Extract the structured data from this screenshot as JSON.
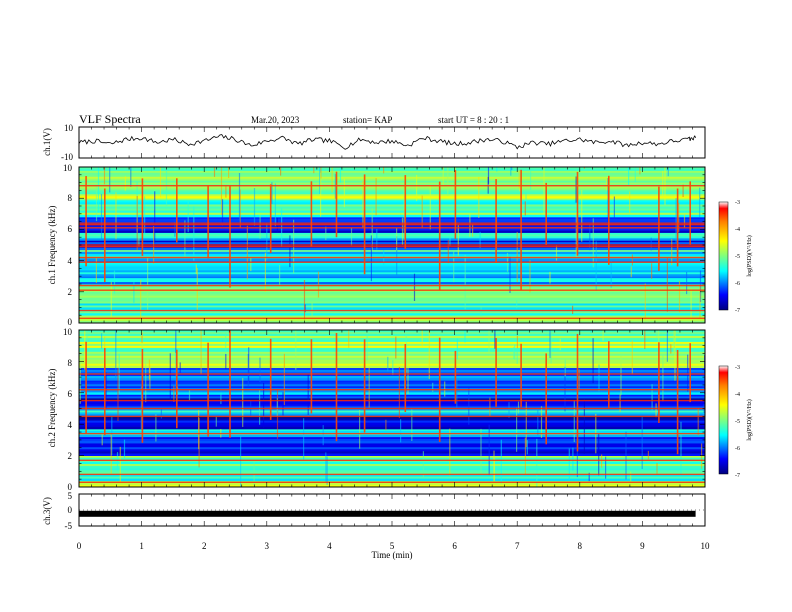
{
  "header": {
    "title": "VLF Spectra",
    "date": "Mar.20, 2023",
    "station": "station= KAP",
    "start_ut": "start  UT =   8  : 20 : 1"
  },
  "chart_data": [
    {
      "type": "line",
      "panel": "ch1-waveform",
      "ylabel": "ch.1(V)",
      "ylim": [
        -10,
        10
      ],
      "y_ticks": [
        "10",
        "-10"
      ],
      "xlim": [
        0,
        10
      ],
      "x": [
        0,
        0.25,
        0.5,
        0.75,
        1,
        1.25,
        1.5,
        1.75,
        2,
        2.25,
        2.5,
        2.75,
        3,
        3.25,
        3.5,
        3.75,
        4,
        4.25,
        4.5,
        4.75,
        5,
        5.25,
        5.5,
        5.75,
        6,
        6.25,
        6.5,
        6.75,
        7,
        7.25,
        7.5,
        7.75,
        8,
        8.25,
        8.5,
        8.75,
        9,
        9.25,
        9.5,
        9.75,
        9.85
      ],
      "y": [
        0,
        1,
        -1,
        2,
        3,
        0,
        2,
        -1,
        1,
        4,
        2,
        -2,
        1,
        3,
        -1,
        2,
        1,
        -3,
        2,
        0,
        1,
        -2,
        3,
        1,
        -1,
        0,
        2,
        1,
        -3,
        0,
        -1,
        1,
        2,
        0,
        1,
        -2,
        0,
        -1,
        1,
        2,
        3
      ]
    },
    {
      "type": "heatmap",
      "panel": "ch1-spectrogram",
      "ylabel": "ch.1 Frequency (kHz)",
      "ylim": [
        0,
        10
      ],
      "y_ticks": [
        "0",
        "2",
        "4",
        "6",
        "8",
        "10"
      ],
      "xlim": [
        0,
        10
      ],
      "colorbar": {
        "label": "log(PSD)(V²/Hz)",
        "ticks": [
          "-3",
          "-4",
          "-5",
          "-6",
          "-7"
        ],
        "range": [
          -7,
          -3
        ]
      },
      "bands": [
        {
          "f0": 0,
          "f1": 0.5,
          "level": -4.6
        },
        {
          "f0": 0.5,
          "f1": 1.5,
          "level": -5.3
        },
        {
          "f0": 1.5,
          "f1": 2.5,
          "level": -5.0
        },
        {
          "f0": 2.5,
          "f1": 3.0,
          "level": -5.7
        },
        {
          "f0": 3.0,
          "f1": 3.5,
          "level": -5.5
        },
        {
          "f0": 3.5,
          "f1": 4.0,
          "level": -5.9
        },
        {
          "f0": 4.0,
          "f1": 4.7,
          "level": -5.5
        },
        {
          "f0": 4.7,
          "f1": 5.3,
          "level": -6.4
        },
        {
          "f0": 5.3,
          "f1": 5.8,
          "level": -5.6
        },
        {
          "f0": 5.8,
          "f1": 6.8,
          "level": -6.3
        },
        {
          "f0": 6.8,
          "f1": 8.0,
          "level": -5.2
        },
        {
          "f0": 8.0,
          "f1": 10.0,
          "level": -4.9
        }
      ],
      "lines_khz": [
        0.3,
        0.8,
        2.1,
        2.4,
        3.9,
        4.2,
        4.9,
        5.0,
        6.1,
        6.3,
        6.4,
        8.8
      ],
      "bursts_min": [
        0.1,
        0.4,
        1.0,
        1.55,
        2.05,
        2.4,
        3.05,
        3.7,
        4.1,
        4.55,
        5.2,
        5.75,
        6.0,
        6.65,
        7.05,
        7.45,
        7.95,
        8.45,
        9.25,
        9.55,
        9.75
      ]
    },
    {
      "type": "heatmap",
      "panel": "ch2-spectrogram",
      "ylabel": "ch.2 Frequency (kHz)",
      "ylim": [
        0,
        10
      ],
      "y_ticks": [
        "0",
        "2",
        "4",
        "6",
        "8",
        "10"
      ],
      "xlim": [
        0,
        10
      ],
      "colorbar": {
        "label": "log(PSD)(V²/Hz)",
        "ticks": [
          "-3",
          "-4",
          "-5",
          "-6",
          "-7"
        ],
        "range": [
          -7,
          -3
        ]
      },
      "bands": [
        {
          "f0": 0,
          "f1": 0.4,
          "level": -4.6
        },
        {
          "f0": 0.4,
          "f1": 1.2,
          "level": -5.4
        },
        {
          "f0": 1.2,
          "f1": 2.0,
          "level": -5.1
        },
        {
          "f0": 2.0,
          "f1": 2.8,
          "level": -6.3
        },
        {
          "f0": 2.8,
          "f1": 3.2,
          "level": -6.5
        },
        {
          "f0": 3.2,
          "f1": 3.7,
          "level": -5.6
        },
        {
          "f0": 3.7,
          "f1": 4.5,
          "level": -6.6
        },
        {
          "f0": 4.5,
          "f1": 5.0,
          "level": -5.6
        },
        {
          "f0": 5.0,
          "f1": 5.9,
          "level": -6.5
        },
        {
          "f0": 5.9,
          "f1": 6.8,
          "level": -6.0
        },
        {
          "f0": 6.8,
          "f1": 7.6,
          "level": -5.9
        },
        {
          "f0": 7.6,
          "f1": 10.0,
          "level": -4.9
        }
      ],
      "lines_khz": [
        0.3,
        0.8,
        1.7,
        3.4,
        4.5,
        5.0,
        5.5,
        6.2,
        7.2
      ],
      "bursts_min": [
        0.1,
        0.4,
        1.0,
        1.55,
        2.05,
        2.4,
        3.05,
        3.7,
        4.1,
        4.55,
        5.2,
        5.75,
        6.0,
        6.65,
        7.05,
        7.45,
        7.95,
        8.45,
        9.25,
        9.55,
        9.75
      ]
    },
    {
      "type": "line",
      "panel": "ch3-waveform",
      "ylabel": "ch.3(V)",
      "ylim": [
        -5,
        5
      ],
      "y_ticks": [
        "5",
        "0",
        "-5"
      ],
      "xlim": [
        0,
        10
      ],
      "x": [
        0,
        9.85
      ],
      "y": [
        -1.2,
        -1.2
      ],
      "xlabel": "Time  (min)",
      "x_ticks": [
        "0",
        "1",
        "2",
        "3",
        "4",
        "5",
        "6",
        "7",
        "8",
        "9",
        "10"
      ]
    }
  ],
  "colors": {
    "colormap": [
      "#00007f",
      "#0000ff",
      "#00ffff",
      "#7fff7f",
      "#ffff00",
      "#ff7f00",
      "#ff0000",
      "#ffffff"
    ],
    "trace": "#000000"
  }
}
